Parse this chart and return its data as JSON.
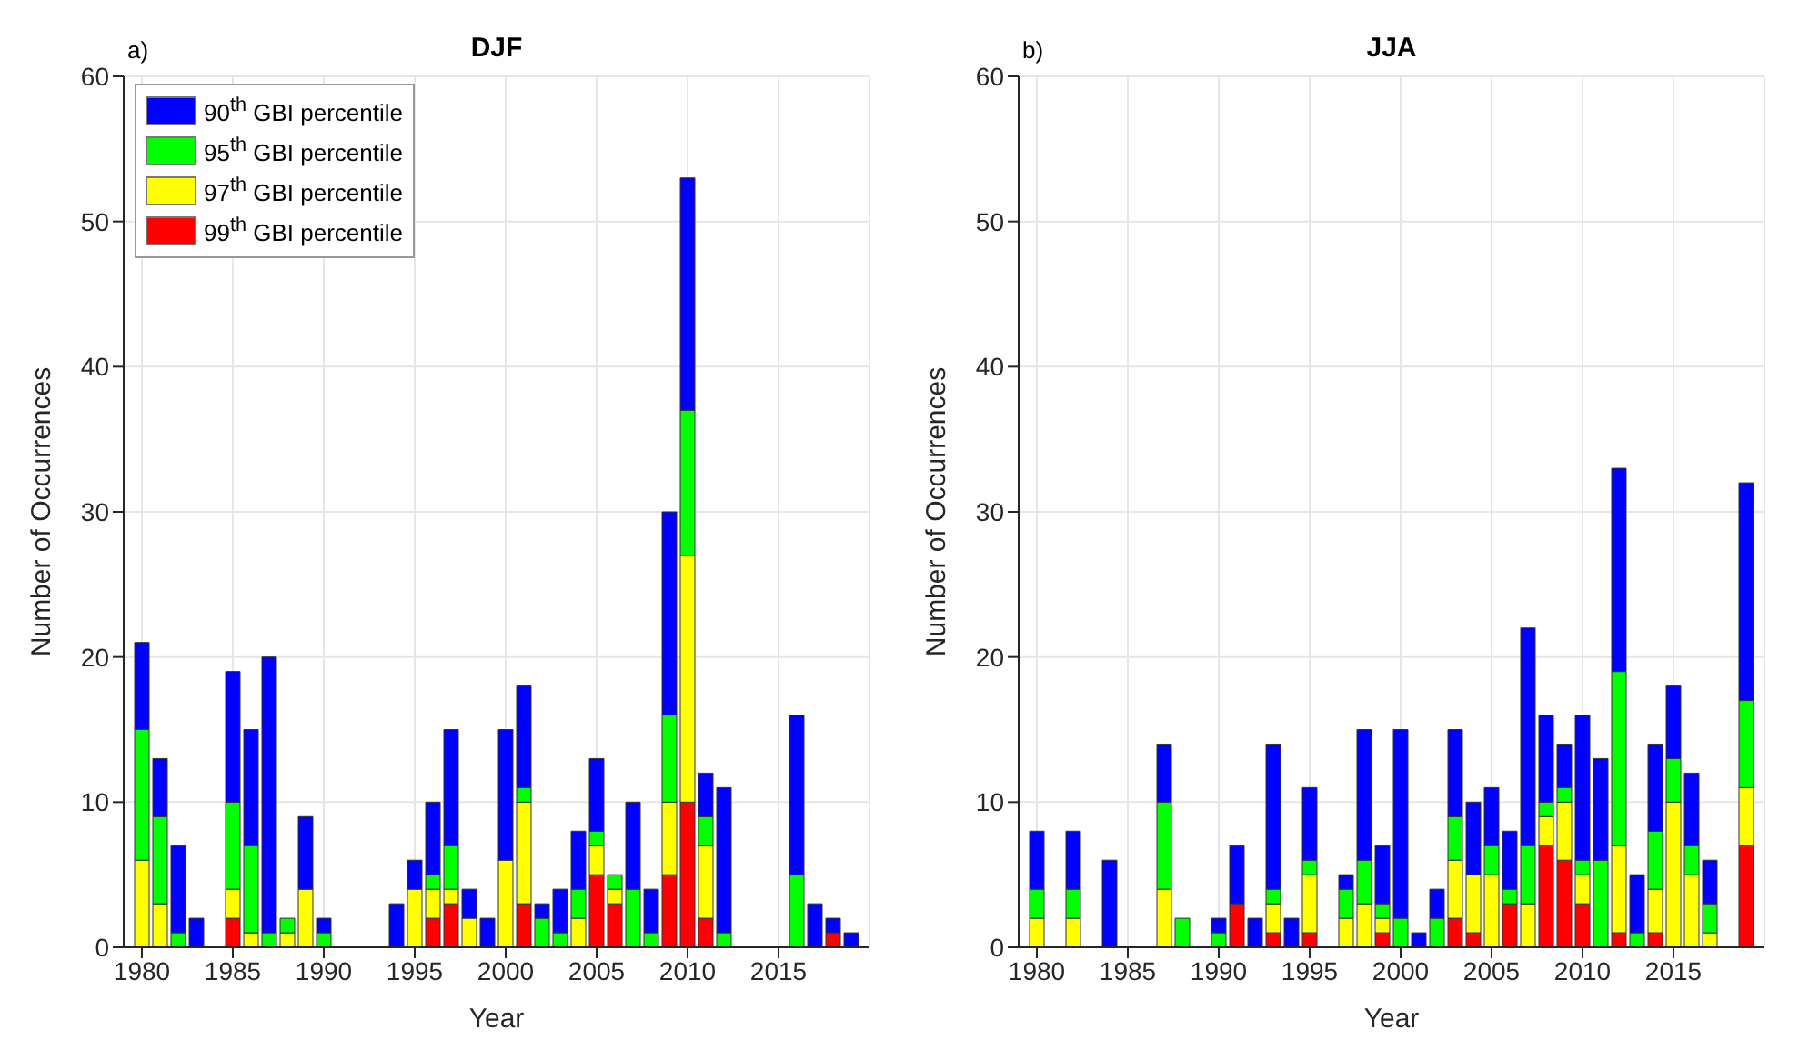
{
  "chart_data": [
    {
      "type": "bar",
      "stacked": true,
      "title": "DJF",
      "annotations": [
        "a)"
      ],
      "xlabel": "Year",
      "ylabel": "Number of Occurrences",
      "x": [
        1980,
        1981,
        1982,
        1983,
        1984,
        1985,
        1986,
        1987,
        1988,
        1989,
        1990,
        1991,
        1992,
        1993,
        1994,
        1995,
        1996,
        1997,
        1998,
        1999,
        2000,
        2001,
        2002,
        2003,
        2004,
        2005,
        2006,
        2007,
        2008,
        2009,
        2010,
        2011,
        2012,
        2013,
        2014,
        2015,
        2016,
        2017,
        2018,
        2019
      ],
      "xlim": [
        1979,
        2020
      ],
      "xticks": [
        1980,
        1985,
        1990,
        1995,
        2000,
        2005,
        2010,
        2015
      ],
      "ylim": [
        0,
        60
      ],
      "yticks": [
        0,
        10,
        20,
        30,
        40,
        50,
        60
      ],
      "grid": true,
      "legend": "top left",
      "series": [
        {
          "name": "99$^{th}$ GBI percentile",
          "color": "#ff0000",
          "values": [
            0,
            0,
            0,
            0,
            0,
            2,
            0,
            0,
            0,
            0,
            0,
            0,
            0,
            0,
            0,
            0,
            2,
            3,
            0,
            0,
            0,
            3,
            0,
            0,
            0,
            5,
            3,
            0,
            0,
            5,
            10,
            2,
            0,
            0,
            0,
            0,
            0,
            0,
            1,
            0
          ]
        },
        {
          "name": "97$^{th}$ GBI percentile",
          "color": "#ffff00",
          "values": [
            6,
            3,
            0,
            0,
            0,
            2,
            1,
            0,
            1,
            4,
            0,
            0,
            0,
            0,
            0,
            4,
            2,
            1,
            2,
            0,
            6,
            7,
            0,
            0,
            2,
            2,
            1,
            0,
            0,
            5,
            17,
            5,
            0,
            0,
            0,
            0,
            0,
            0,
            0,
            0
          ]
        },
        {
          "name": "95$^{th}$ GBI percentile",
          "color": "#00ff00",
          "values": [
            9,
            6,
            1,
            0,
            0,
            6,
            6,
            1,
            1,
            0,
            1,
            0,
            0,
            0,
            0,
            0,
            1,
            3,
            0,
            0,
            0,
            1,
            2,
            1,
            2,
            1,
            1,
            4,
            1,
            6,
            10,
            2,
            1,
            0,
            0,
            0,
            5,
            0,
            0,
            0
          ]
        },
        {
          "name": "90$^{th}$ GBI percentile",
          "color": "#0000ff",
          "values": [
            6,
            4,
            6,
            2,
            0,
            9,
            8,
            19,
            0,
            5,
            1,
            0,
            0,
            0,
            3,
            2,
            5,
            8,
            2,
            2,
            9,
            7,
            1,
            3,
            4,
            5,
            0,
            6,
            3,
            14,
            16,
            3,
            10,
            0,
            0,
            0,
            11,
            3,
            1,
            1
          ]
        }
      ]
    },
    {
      "type": "bar",
      "stacked": true,
      "title": "JJA",
      "annotations": [
        "b)"
      ],
      "xlabel": "Year",
      "ylabel": "Number of Occurrences",
      "x": [
        1980,
        1981,
        1982,
        1983,
        1984,
        1985,
        1986,
        1987,
        1988,
        1989,
        1990,
        1991,
        1992,
        1993,
        1994,
        1995,
        1996,
        1997,
        1998,
        1999,
        2000,
        2001,
        2002,
        2003,
        2004,
        2005,
        2006,
        2007,
        2008,
        2009,
        2010,
        2011,
        2012,
        2013,
        2014,
        2015,
        2016,
        2017,
        2018,
        2019
      ],
      "xlim": [
        1979,
        2020
      ],
      "xticks": [
        1980,
        1985,
        1990,
        1995,
        2000,
        2005,
        2010,
        2015
      ],
      "ylim": [
        0,
        60
      ],
      "yticks": [
        0,
        10,
        20,
        30,
        40,
        50,
        60
      ],
      "grid": true,
      "series": [
        {
          "color": "#ff0000",
          "values": [
            0,
            0,
            0,
            0,
            0,
            0,
            0,
            0,
            0,
            0,
            0,
            3,
            0,
            1,
            0,
            1,
            0,
            0,
            0,
            1,
            0,
            0,
            0,
            2,
            1,
            0,
            3,
            0,
            7,
            6,
            3,
            0,
            1,
            0,
            1,
            0,
            0,
            0,
            0,
            7
          ]
        },
        {
          "color": "#ffff00",
          "values": [
            2,
            0,
            2,
            0,
            0,
            0,
            0,
            4,
            0,
            0,
            0,
            0,
            0,
            2,
            0,
            4,
            0,
            2,
            3,
            1,
            0,
            0,
            0,
            4,
            4,
            5,
            0,
            3,
            2,
            4,
            2,
            0,
            6,
            0,
            3,
            10,
            5,
            1,
            0,
            4
          ]
        },
        {
          "color": "#00ff00",
          "values": [
            2,
            0,
            2,
            0,
            0,
            0,
            0,
            6,
            2,
            0,
            1,
            0,
            0,
            1,
            0,
            1,
            0,
            2,
            3,
            1,
            2,
            0,
            2,
            3,
            0,
            2,
            1,
            4,
            1,
            1,
            1,
            6,
            12,
            1,
            4,
            3,
            2,
            2,
            0,
            6
          ]
        },
        {
          "color": "#0000ff",
          "values": [
            4,
            0,
            4,
            0,
            6,
            0,
            0,
            4,
            0,
            0,
            1,
            4,
            2,
            10,
            2,
            5,
            0,
            1,
            9,
            4,
            13,
            1,
            2,
            6,
            5,
            4,
            4,
            15,
            6,
            3,
            10,
            7,
            14,
            4,
            6,
            5,
            5,
            3,
            0,
            15
          ]
        }
      ]
    }
  ]
}
